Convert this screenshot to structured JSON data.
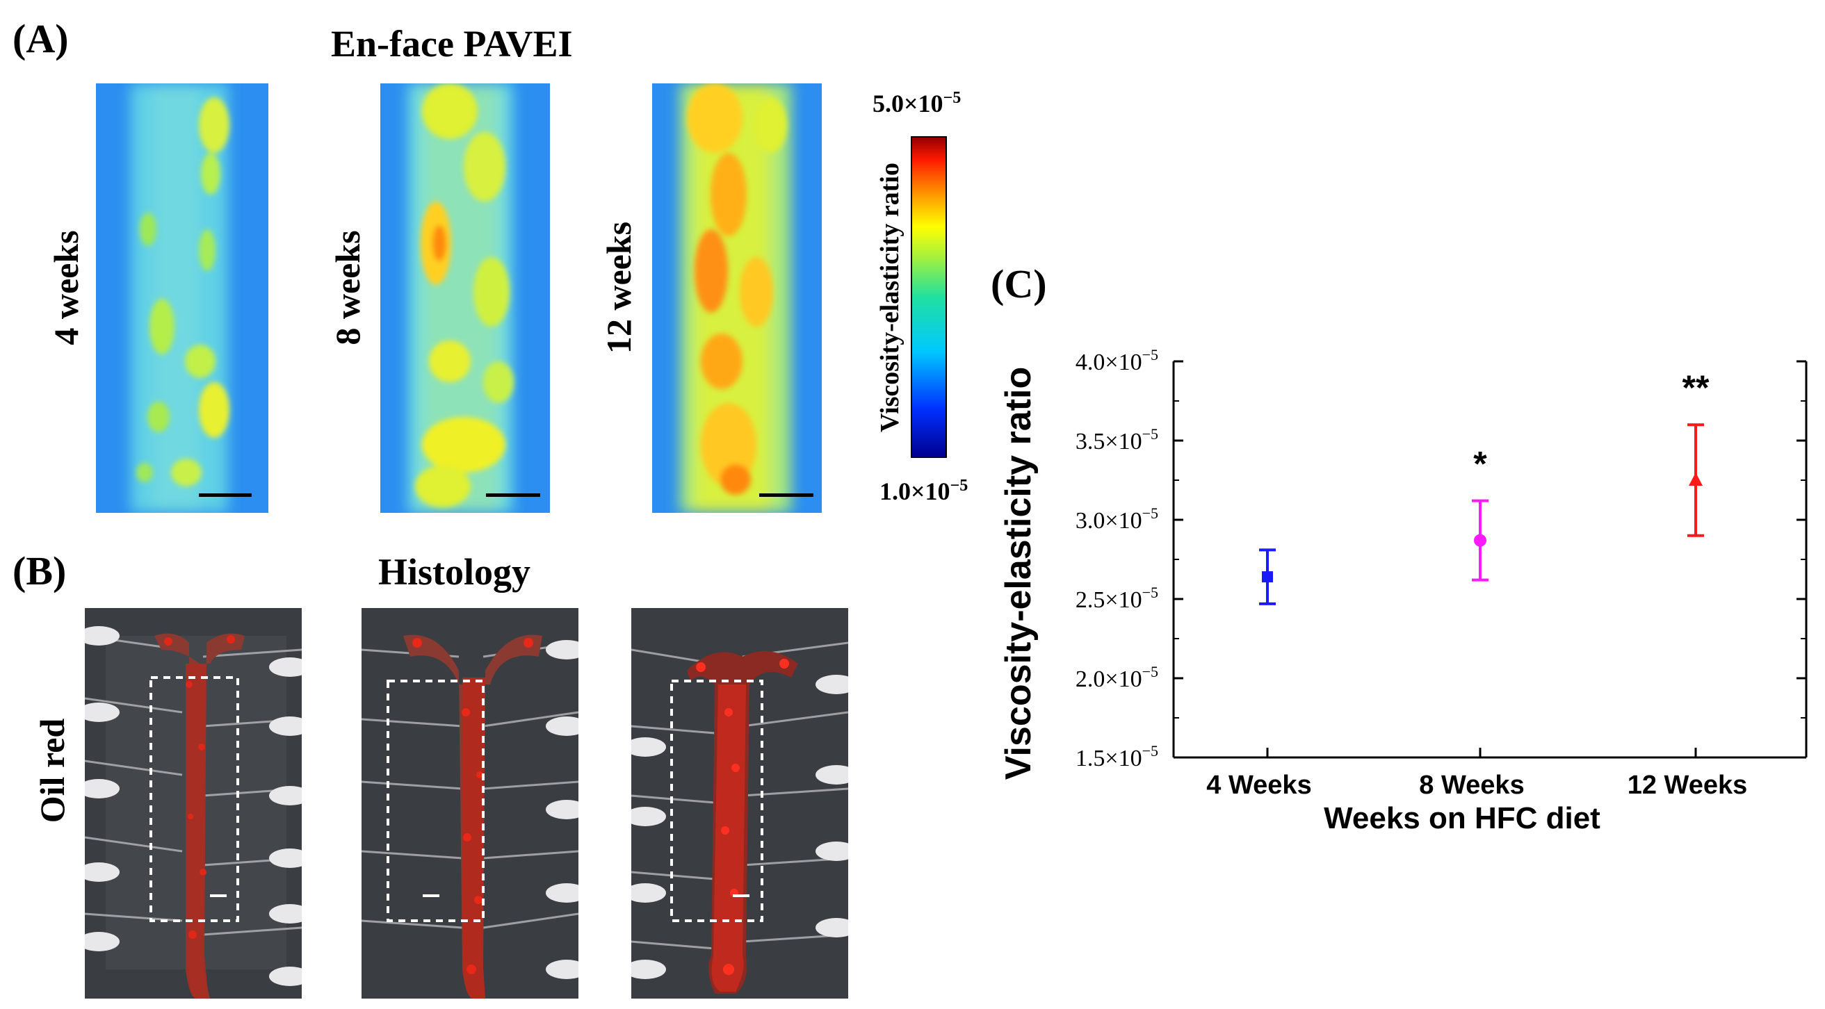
{
  "panelA": {
    "label": "(A)",
    "title": "En-face PAVEI",
    "rows": [
      "4 weeks",
      "8 weeks",
      "12 weeks"
    ],
    "colorbar": {
      "label": "Viscosity-elasticity ratio",
      "max_label": "5.0×10",
      "max_exp": "−5",
      "min_label": "1.0×10",
      "min_exp": "−5"
    }
  },
  "panelB": {
    "label": "(B)",
    "title": "Histology",
    "row_label": "Oil red"
  },
  "panelC": {
    "label": "(C)"
  },
  "chart_data": {
    "type": "scatter",
    "title": "",
    "xlabel": "Weeks on HFC diet",
    "ylabel": "Viscosity-elasticity ratio",
    "categories": [
      "4 Weeks",
      "8 Weeks",
      "12 Weeks"
    ],
    "yticks": [
      {
        "mant": "1.5×10",
        "exp": "−5",
        "value": 1.5
      },
      {
        "mant": "2.0×10",
        "exp": "−5",
        "value": 2.0
      },
      {
        "mant": "2.5×10",
        "exp": "−5",
        "value": 2.5
      },
      {
        "mant": "3.0×10",
        "exp": "−5",
        "value": 3.0
      },
      {
        "mant": "3.5×10",
        "exp": "−5",
        "value": 3.5
      },
      {
        "mant": "4.0×10",
        "exp": "−5",
        "value": 4.0
      }
    ],
    "ylim": [
      1.5,
      4.0
    ],
    "y_unit_multiplier": "1e-5",
    "series": [
      {
        "name": "4 Weeks",
        "value": 2.64,
        "err_low": 2.47,
        "err_high": 2.81,
        "color": "#1a1aff",
        "marker": "square",
        "sig": ""
      },
      {
        "name": "8 Weeks",
        "value": 2.87,
        "err_low": 2.62,
        "err_high": 3.12,
        "color": "#ff19ff",
        "marker": "circle",
        "sig": "*"
      },
      {
        "name": "12 Weeks",
        "value": 3.25,
        "err_low": 2.9,
        "err_high": 3.6,
        "color": "#ff1a1a",
        "marker": "triangle",
        "sig": "**"
      }
    ]
  }
}
